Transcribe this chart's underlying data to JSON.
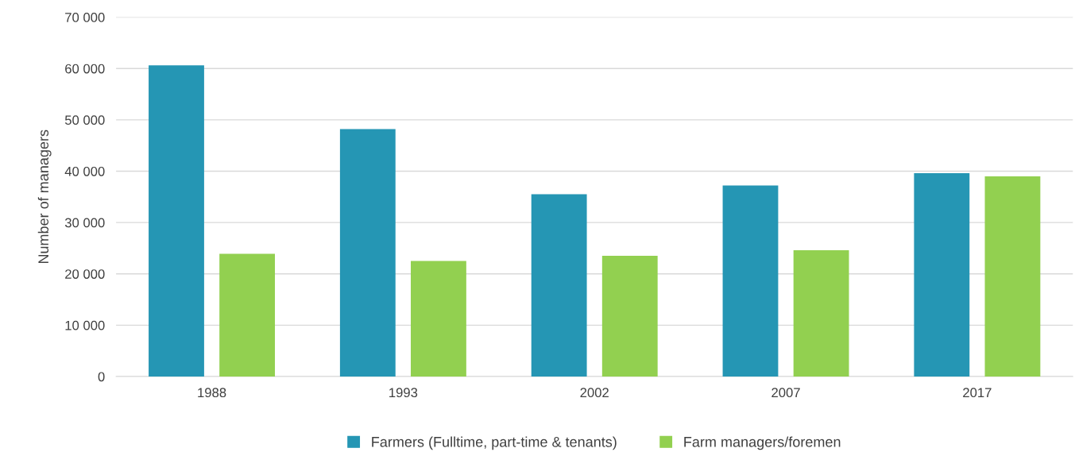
{
  "chart_data": {
    "type": "bar",
    "ylabel": "Number of managers",
    "categories": [
      "1988",
      "1993",
      "2002",
      "2007",
      "2017"
    ],
    "series": [
      {
        "name": "Farmers (Fulltime, part-time & tenants)",
        "color": "#2596b4",
        "values": [
          60600,
          48200,
          35500,
          37200,
          39600
        ]
      },
      {
        "name": "Farm managers/foremen",
        "color": "#92d050",
        "values": [
          23900,
          22500,
          23500,
          24600,
          39000
        ]
      }
    ],
    "ylim": [
      0,
      70000
    ],
    "yticks": [
      {
        "value": 0,
        "label": "0"
      },
      {
        "value": 10000,
        "label": "10 000"
      },
      {
        "value": 20000,
        "label": "20 000"
      },
      {
        "value": 30000,
        "label": "30 000"
      },
      {
        "value": 40000,
        "label": "40 000"
      },
      {
        "value": 50000,
        "label": "50 000"
      },
      {
        "value": 60000,
        "label": "60 000"
      },
      {
        "value": 70000,
        "label": "70 000"
      }
    ],
    "grid": "y",
    "legend": "bottom"
  }
}
